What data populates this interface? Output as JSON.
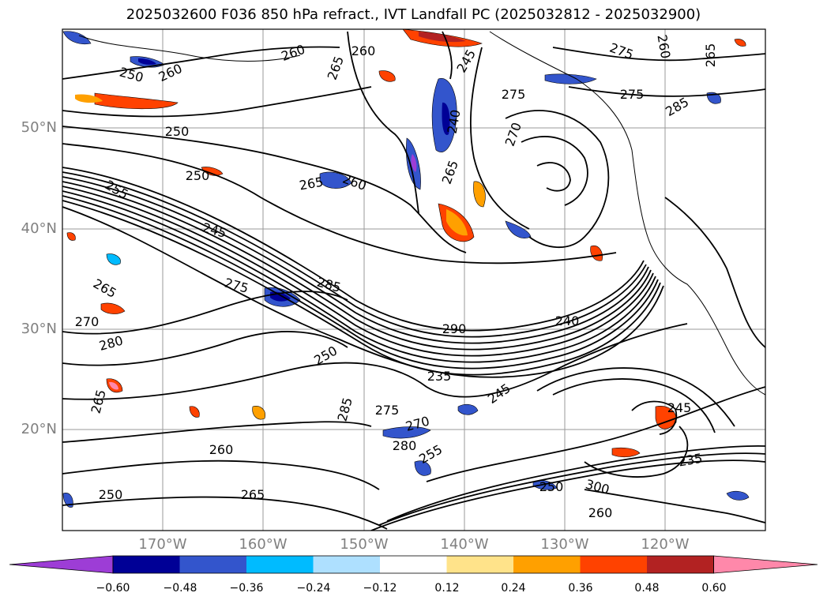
{
  "title": "2025032600 F036 850 hPa refract., IVT Landfall PC (2025032812 - 2025032900)",
  "axes": {
    "lon_ticks": [
      "170°W",
      "160°W",
      "150°W",
      "140°W",
      "130°W",
      "120°W"
    ],
    "lat_ticks": [
      "50°N",
      "40°N",
      "30°N",
      "20°N"
    ],
    "label_color": "#808080"
  },
  "contour_labels": [
    "250",
    "260",
    "250",
    "260",
    "265",
    "260",
    "265",
    "260",
    "250",
    "255",
    "245",
    "265",
    "270",
    "275",
    "280",
    "285",
    "250",
    "290",
    "240",
    "235",
    "285",
    "275",
    "270",
    "280",
    "255",
    "245",
    "250",
    "265",
    "250",
    "300",
    "245",
    "235",
    "245",
    "240",
    "265",
    "270",
    "275",
    "260",
    "265",
    "275",
    "285",
    "260",
    "260",
    "275",
    "265"
  ],
  "colorbar": {
    "ticks": [
      "−0.60",
      "−0.48",
      "−0.36",
      "−0.24",
      "−0.12",
      "0.12",
      "0.24",
      "0.36",
      "0.48",
      "0.60"
    ],
    "colors": [
      "#9d3dd6",
      "#000096",
      "#3355cc",
      "#00bbff",
      "#aee0ff",
      "#ffffff",
      "#ffe38a",
      "#ffa000",
      "#ff4200",
      "#b22222",
      "#ff88aa"
    ]
  }
}
